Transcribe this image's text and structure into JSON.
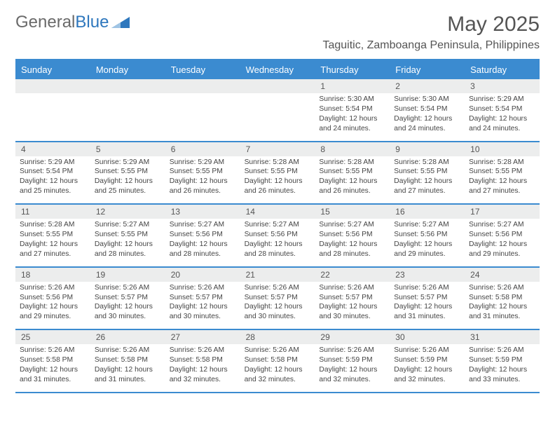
{
  "logo": {
    "text1": "General",
    "text2": "Blue"
  },
  "title": "May 2025",
  "location": "Taguitic, Zamboanga Peninsula, Philippines",
  "colors": {
    "header_bg": "#3b8bd0",
    "header_text": "#ffffff",
    "daynum_bg": "#eceded",
    "border": "#3b8bd0",
    "logo_gray": "#6a6a6a",
    "logo_blue": "#2e77bd",
    "text": "#454545"
  },
  "day_headers": [
    "Sunday",
    "Monday",
    "Tuesday",
    "Wednesday",
    "Thursday",
    "Friday",
    "Saturday"
  ],
  "weeks": [
    [
      {
        "n": "",
        "d": ""
      },
      {
        "n": "",
        "d": ""
      },
      {
        "n": "",
        "d": ""
      },
      {
        "n": "",
        "d": ""
      },
      {
        "n": "1",
        "d": "Sunrise: 5:30 AM\nSunset: 5:54 PM\nDaylight: 12 hours and 24 minutes."
      },
      {
        "n": "2",
        "d": "Sunrise: 5:30 AM\nSunset: 5:54 PM\nDaylight: 12 hours and 24 minutes."
      },
      {
        "n": "3",
        "d": "Sunrise: 5:29 AM\nSunset: 5:54 PM\nDaylight: 12 hours and 24 minutes."
      }
    ],
    [
      {
        "n": "4",
        "d": "Sunrise: 5:29 AM\nSunset: 5:54 PM\nDaylight: 12 hours and 25 minutes."
      },
      {
        "n": "5",
        "d": "Sunrise: 5:29 AM\nSunset: 5:55 PM\nDaylight: 12 hours and 25 minutes."
      },
      {
        "n": "6",
        "d": "Sunrise: 5:29 AM\nSunset: 5:55 PM\nDaylight: 12 hours and 26 minutes."
      },
      {
        "n": "7",
        "d": "Sunrise: 5:28 AM\nSunset: 5:55 PM\nDaylight: 12 hours and 26 minutes."
      },
      {
        "n": "8",
        "d": "Sunrise: 5:28 AM\nSunset: 5:55 PM\nDaylight: 12 hours and 26 minutes."
      },
      {
        "n": "9",
        "d": "Sunrise: 5:28 AM\nSunset: 5:55 PM\nDaylight: 12 hours and 27 minutes."
      },
      {
        "n": "10",
        "d": "Sunrise: 5:28 AM\nSunset: 5:55 PM\nDaylight: 12 hours and 27 minutes."
      }
    ],
    [
      {
        "n": "11",
        "d": "Sunrise: 5:28 AM\nSunset: 5:55 PM\nDaylight: 12 hours and 27 minutes."
      },
      {
        "n": "12",
        "d": "Sunrise: 5:27 AM\nSunset: 5:55 PM\nDaylight: 12 hours and 28 minutes."
      },
      {
        "n": "13",
        "d": "Sunrise: 5:27 AM\nSunset: 5:56 PM\nDaylight: 12 hours and 28 minutes."
      },
      {
        "n": "14",
        "d": "Sunrise: 5:27 AM\nSunset: 5:56 PM\nDaylight: 12 hours and 28 minutes."
      },
      {
        "n": "15",
        "d": "Sunrise: 5:27 AM\nSunset: 5:56 PM\nDaylight: 12 hours and 28 minutes."
      },
      {
        "n": "16",
        "d": "Sunrise: 5:27 AM\nSunset: 5:56 PM\nDaylight: 12 hours and 29 minutes."
      },
      {
        "n": "17",
        "d": "Sunrise: 5:27 AM\nSunset: 5:56 PM\nDaylight: 12 hours and 29 minutes."
      }
    ],
    [
      {
        "n": "18",
        "d": "Sunrise: 5:26 AM\nSunset: 5:56 PM\nDaylight: 12 hours and 29 minutes."
      },
      {
        "n": "19",
        "d": "Sunrise: 5:26 AM\nSunset: 5:57 PM\nDaylight: 12 hours and 30 minutes."
      },
      {
        "n": "20",
        "d": "Sunrise: 5:26 AM\nSunset: 5:57 PM\nDaylight: 12 hours and 30 minutes."
      },
      {
        "n": "21",
        "d": "Sunrise: 5:26 AM\nSunset: 5:57 PM\nDaylight: 12 hours and 30 minutes."
      },
      {
        "n": "22",
        "d": "Sunrise: 5:26 AM\nSunset: 5:57 PM\nDaylight: 12 hours and 30 minutes."
      },
      {
        "n": "23",
        "d": "Sunrise: 5:26 AM\nSunset: 5:57 PM\nDaylight: 12 hours and 31 minutes."
      },
      {
        "n": "24",
        "d": "Sunrise: 5:26 AM\nSunset: 5:58 PM\nDaylight: 12 hours and 31 minutes."
      }
    ],
    [
      {
        "n": "25",
        "d": "Sunrise: 5:26 AM\nSunset: 5:58 PM\nDaylight: 12 hours and 31 minutes."
      },
      {
        "n": "26",
        "d": "Sunrise: 5:26 AM\nSunset: 5:58 PM\nDaylight: 12 hours and 31 minutes."
      },
      {
        "n": "27",
        "d": "Sunrise: 5:26 AM\nSunset: 5:58 PM\nDaylight: 12 hours and 32 minutes."
      },
      {
        "n": "28",
        "d": "Sunrise: 5:26 AM\nSunset: 5:58 PM\nDaylight: 12 hours and 32 minutes."
      },
      {
        "n": "29",
        "d": "Sunrise: 5:26 AM\nSunset: 5:59 PM\nDaylight: 12 hours and 32 minutes."
      },
      {
        "n": "30",
        "d": "Sunrise: 5:26 AM\nSunset: 5:59 PM\nDaylight: 12 hours and 32 minutes."
      },
      {
        "n": "31",
        "d": "Sunrise: 5:26 AM\nSunset: 5:59 PM\nDaylight: 12 hours and 33 minutes."
      }
    ]
  ]
}
